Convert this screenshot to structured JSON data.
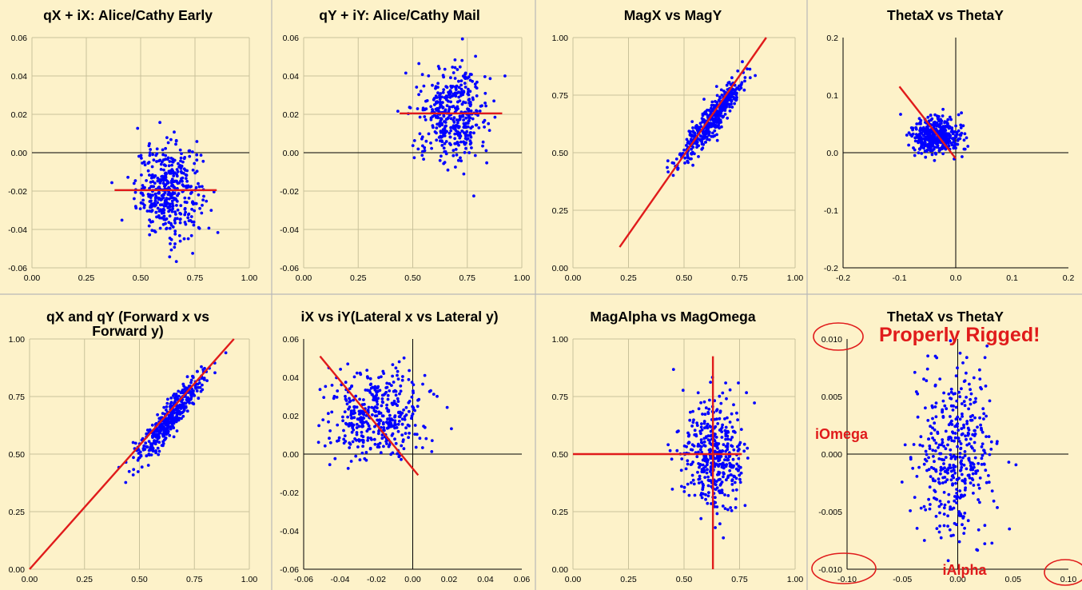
{
  "chart_data": [
    {
      "type": "scatter",
      "title": "qX + iX: Alice/Cathy Early",
      "xlim": [
        0,
        1
      ],
      "ylim": [
        -0.06,
        0.06
      ],
      "xticks": [
        "0.00",
        "0.25",
        "0.50",
        "0.75",
        "1.00"
      ],
      "yticks": [
        "-0.06",
        "-0.04",
        "-0.02",
        "0.00",
        "0.02",
        "0.04",
        "0.06"
      ],
      "grid": true,
      "point_color": "#0000ff",
      "cloud": {
        "n": 420,
        "cx": 0.63,
        "cy": -0.02,
        "sx": 0.075,
        "sy": 0.012,
        "corr": 0
      },
      "fit_lines": [
        {
          "x1": 0.38,
          "y1": -0.0195,
          "x2": 0.85,
          "y2": -0.0195,
          "color": "#e01b1b"
        }
      ]
    },
    {
      "type": "scatter",
      "title": "qY + iY: Alice/Cathy Mail",
      "xlim": [
        0,
        1
      ],
      "ylim": [
        -0.06,
        0.06
      ],
      "xticks": [
        "0.00",
        "0.25",
        "0.50",
        "0.75",
        "1.00"
      ],
      "yticks": [
        "-0.06",
        "-0.04",
        "-0.02",
        "0.00",
        "0.02",
        "0.04",
        "0.06"
      ],
      "grid": true,
      "point_color": "#0000ff",
      "cloud": {
        "n": 420,
        "cx": 0.68,
        "cy": 0.02,
        "sx": 0.08,
        "sy": 0.012,
        "corr": 0
      },
      "fit_lines": [
        {
          "x1": 0.44,
          "y1": 0.0205,
          "x2": 0.91,
          "y2": 0.0205,
          "color": "#e01b1b"
        }
      ]
    },
    {
      "type": "scatter",
      "title": "MagX vs MagY",
      "xlim": [
        0,
        1
      ],
      "ylim": [
        0,
        1
      ],
      "xticks": [
        "0.00",
        "0.25",
        "0.50",
        "0.75",
        "1.00"
      ],
      "yticks": [
        "0.00",
        "0.25",
        "0.50",
        "0.75",
        "1.00"
      ],
      "grid": true,
      "point_color": "#0000ff",
      "cloud": {
        "n": 420,
        "cx": 0.63,
        "cy": 0.65,
        "sx": 0.075,
        "sy": 0.095,
        "corr": 0.92
      },
      "fit_lines": [
        {
          "x1": 0.21,
          "y1": 0.09,
          "x2": 0.87,
          "y2": 1.0,
          "color": "#e01b1b"
        }
      ]
    },
    {
      "type": "scatter",
      "title": "ThetaX vs ThetaY",
      "xlim": [
        -0.2,
        0.2
      ],
      "ylim": [
        -0.2,
        0.2
      ],
      "xticks": [
        "-0.2",
        "-0.1",
        "0.0",
        "0.1",
        "0.2"
      ],
      "yticks": [
        "-0.2",
        "-0.1",
        "0.0",
        "0.1",
        "0.2"
      ],
      "grid": false,
      "point_color": "#0000ff",
      "cloud": {
        "n": 420,
        "cx": -0.035,
        "cy": 0.03,
        "sx": 0.022,
        "sy": 0.017,
        "corr": 0
      },
      "fit_lines": [
        {
          "x1": -0.1,
          "y1": 0.115,
          "x2": 0.0,
          "y2": -0.01,
          "color": "#e01b1b"
        }
      ]
    },
    {
      "type": "scatter",
      "title": "qX and qY (Forward x vs Forward y)",
      "title_lines": [
        "qX and qY (Forward x vs",
        "Forward y)"
      ],
      "xlim": [
        0,
        1
      ],
      "ylim": [
        0,
        1
      ],
      "xticks": [
        "0.00",
        "0.25",
        "0.50",
        "0.75",
        "1.00"
      ],
      "yticks": [
        "0.00",
        "0.25",
        "0.50",
        "0.75",
        "1.00"
      ],
      "grid": true,
      "point_color": "#0000ff",
      "cloud": {
        "n": 420,
        "cx": 0.64,
        "cy": 0.66,
        "sx": 0.075,
        "sy": 0.095,
        "corr": 0.92
      },
      "fit_lines": [
        {
          "x1": 0.0,
          "y1": 0.0,
          "x2": 0.93,
          "y2": 1.0,
          "color": "#e01b1b"
        }
      ]
    },
    {
      "type": "scatter",
      "title": "iX vs iY(Lateral x vs Lateral y)",
      "xlim": [
        -0.06,
        0.06
      ],
      "ylim": [
        -0.06,
        0.06
      ],
      "xticks": [
        "-0.06",
        "-0.04",
        "-0.02",
        "0.00",
        "0.02",
        "0.04",
        "0.06"
      ],
      "yticks": [
        "-0.06",
        "-0.04",
        "-0.02",
        "0.00",
        "0.02",
        "0.04",
        "0.06"
      ],
      "grid": false,
      "point_color": "#0000ff",
      "cloud": {
        "n": 420,
        "cx": -0.02,
        "cy": 0.02,
        "sx": 0.013,
        "sy": 0.012,
        "corr": 0
      },
      "fit_lines": [
        {
          "x1": -0.051,
          "y1": 0.051,
          "x2": 0.003,
          "y2": -0.011,
          "color": "#e01b1b"
        }
      ]
    },
    {
      "type": "scatter",
      "title": "MagAlpha vs MagOmega",
      "xlim": [
        0,
        1
      ],
      "ylim": [
        0,
        1
      ],
      "xticks": [
        "0.00",
        "0.25",
        "0.50",
        "0.75",
        "1.00"
      ],
      "yticks": [
        "0.00",
        "0.25",
        "0.50",
        "0.75",
        "1.00"
      ],
      "grid": true,
      "point_color": "#0000ff",
      "cloud": {
        "n": 420,
        "cx": 0.635,
        "cy": 0.5,
        "sx": 0.07,
        "sy": 0.12,
        "corr": 0
      },
      "fit_lines": [
        {
          "x1": 0.0,
          "y1": 0.5,
          "x2": 0.76,
          "y2": 0.5,
          "color": "#e01b1b"
        },
        {
          "x1": 0.63,
          "y1": 0.0,
          "x2": 0.63,
          "y2": 0.925,
          "color": "#e01b1b"
        }
      ]
    },
    {
      "type": "scatter",
      "title": "ThetaX vs ThetaY",
      "xlim": [
        -0.1,
        0.1
      ],
      "ylim": [
        -0.01,
        0.01
      ],
      "xticks": [
        "-0.10",
        "-0.05",
        "0.00",
        "0.05",
        "0.10"
      ],
      "yticks": [
        "-0.010",
        "-0.005",
        "0.000",
        "0.005",
        "0.010"
      ],
      "grid": false,
      "point_color": "#0000ff",
      "cloud": {
        "n": 420,
        "cx": -0.002,
        "cy": 0.0,
        "sx": 0.018,
        "sy": 0.0038,
        "corr": 0
      },
      "fit_lines": [],
      "annotations": [
        {
          "text": "Properly Rigged!",
          "color": "#e01b1b"
        },
        {
          "text": "iOmega",
          "color": "#e01b1b"
        },
        {
          "text": "iAlpha",
          "color": "#e01b1b"
        }
      ],
      "circled_ticks": [
        "0.010",
        "-0.010",
        "-0.10",
        "0.10"
      ]
    }
  ]
}
